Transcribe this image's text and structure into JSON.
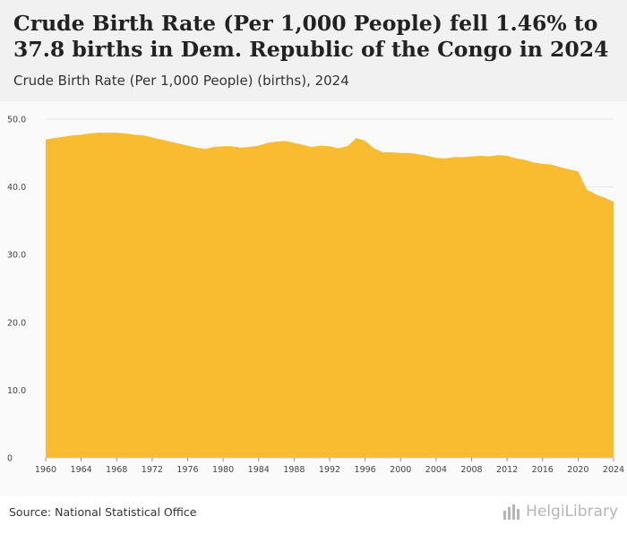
{
  "header": {
    "title": "Crude Birth Rate (Per 1,000 People) fell 1.46% to 37.8 births in Dem. Republic of the Congo in 2024",
    "subtitle": "Crude Birth Rate (Per 1,000 People) (births), 2024"
  },
  "footer": {
    "source": "Source: National Statistical Office",
    "logo_text": "HelgiLibrary",
    "logo_icon": "bar-chart-icon"
  },
  "colors": {
    "area_fill": "#f9bc31",
    "header_bg": "#f1f1f1",
    "plot_bg": "#fafafa",
    "grid": "#e6e6e6"
  },
  "chart_data": {
    "type": "area",
    "title": "Crude Birth Rate (Per 1,000 People) fell 1.46% to 37.8 births in Dem. Republic of the Congo in 2024",
    "xlabel": "",
    "ylabel": "",
    "xlim": [
      1960,
      2024
    ],
    "ylim": [
      0,
      50
    ],
    "grid": true,
    "legend": "none",
    "x_ticks": [
      1960,
      1964,
      1968,
      1972,
      1976,
      1980,
      1984,
      1988,
      1992,
      1996,
      2000,
      2004,
      2008,
      2012,
      2016,
      2020,
      2024
    ],
    "y_ticks": [
      {
        "value": 0,
        "label": "0"
      },
      {
        "value": 10,
        "label": "10.0"
      },
      {
        "value": 20,
        "label": "20.0"
      },
      {
        "value": 30,
        "label": "30.0"
      },
      {
        "value": 40,
        "label": "40.0"
      },
      {
        "value": 50,
        "label": "50.0"
      }
    ],
    "x": [
      1960,
      1961,
      1962,
      1963,
      1964,
      1965,
      1966,
      1967,
      1968,
      1969,
      1970,
      1971,
      1972,
      1973,
      1974,
      1975,
      1976,
      1977,
      1978,
      1979,
      1980,
      1981,
      1982,
      1983,
      1984,
      1985,
      1986,
      1987,
      1988,
      1989,
      1990,
      1991,
      1992,
      1993,
      1994,
      1995,
      1996,
      1997,
      1998,
      1999,
      2000,
      2001,
      2002,
      2003,
      2004,
      2005,
      2006,
      2007,
      2008,
      2009,
      2010,
      2011,
      2012,
      2013,
      2014,
      2015,
      2016,
      2017,
      2018,
      2019,
      2020,
      2021,
      2022,
      2023,
      2024
    ],
    "series": [
      {
        "values": [
          47.0,
          47.2,
          47.4,
          47.6,
          47.7,
          47.9,
          48.0,
          48.0,
          48.0,
          47.9,
          47.7,
          47.6,
          47.3,
          47.0,
          46.7,
          46.4,
          46.1,
          45.8,
          45.6,
          45.9,
          46.0,
          46.0,
          45.8,
          45.9,
          46.1,
          46.5,
          46.7,
          46.8,
          46.5,
          46.2,
          45.9,
          46.1,
          46.0,
          45.7,
          46.0,
          47.2,
          46.8,
          45.7,
          45.1,
          45.1,
          45.0,
          45.0,
          44.8,
          44.6,
          44.3,
          44.2,
          44.4,
          44.4,
          44.5,
          44.6,
          44.5,
          44.7,
          44.6,
          44.2,
          44.0,
          43.6,
          43.4,
          43.3,
          42.9,
          42.6,
          42.3,
          39.6,
          38.9,
          38.4,
          37.8
        ]
      }
    ]
  }
}
